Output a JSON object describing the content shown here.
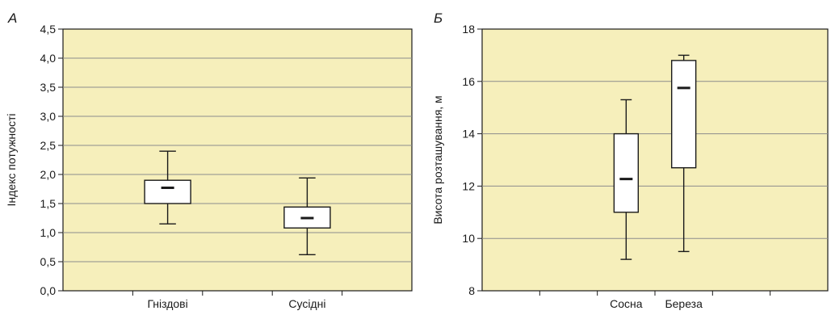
{
  "colors": {
    "plot_background": "#f6efbb",
    "grid": "#8c8c8c",
    "box_fill": "#ffffff",
    "line": "#1a1a1a"
  },
  "chart_data": [
    {
      "type": "box",
      "panel_label": "А",
      "ylabel": "Індекс потужності",
      "xlabel": "",
      "ylim": [
        0.0,
        4.5
      ],
      "yticks": [
        0.0,
        0.5,
        1.0,
        1.5,
        2.0,
        2.5,
        3.0,
        3.5,
        4.0,
        4.5
      ],
      "ytick_labels": [
        "0,0",
        "0,5",
        "1,0",
        "1,5",
        "2,0",
        "2,5",
        "3,0",
        "3,5",
        "4,0",
        "4,5"
      ],
      "grid": true,
      "x_slots": 5,
      "categories": [
        "Гніздові",
        "Сусідні"
      ],
      "category_slots": [
        1.5,
        3.5
      ],
      "boxes": [
        {
          "whisker_low": 1.15,
          "q1": 1.5,
          "median": 1.77,
          "q3": 1.9,
          "whisker_high": 2.4
        },
        {
          "whisker_low": 0.62,
          "q1": 1.08,
          "median": 1.25,
          "q3": 1.44,
          "whisker_high": 1.94
        }
      ]
    },
    {
      "type": "box",
      "panel_label": "Б",
      "ylabel": "Висота розташування, м",
      "xlabel": "",
      "ylim": [
        8,
        18
      ],
      "yticks": [
        8,
        10,
        12,
        14,
        16,
        18
      ],
      "ytick_labels": [
        "8",
        "10",
        "12",
        "14",
        "16",
        "18"
      ],
      "grid": true,
      "x_slots": 6,
      "categories": [
        "Сосна",
        "Береза"
      ],
      "category_slots": [
        2.5,
        3.5
      ],
      "boxes": [
        {
          "whisker_low": 9.2,
          "q1": 11.0,
          "median": 12.27,
          "q3": 14.0,
          "whisker_high": 15.3
        },
        {
          "whisker_low": 9.5,
          "q1": 12.7,
          "median": 15.75,
          "q3": 16.8,
          "whisker_high": 17.0
        }
      ]
    }
  ]
}
